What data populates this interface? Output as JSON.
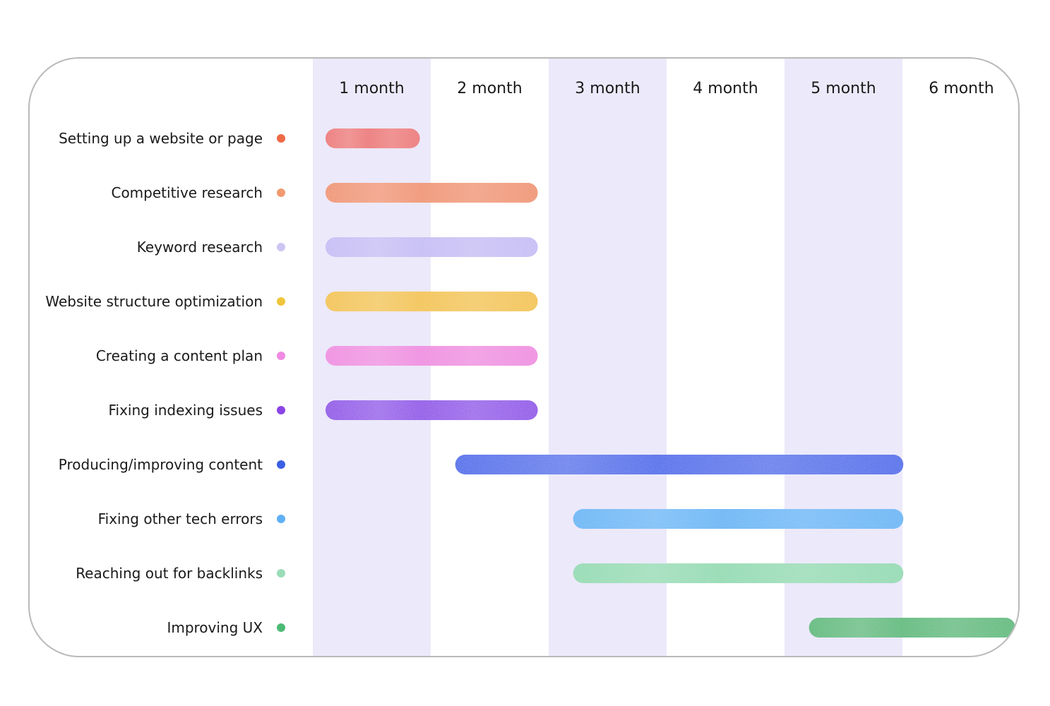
{
  "chart_data": {
    "type": "gantt",
    "title": "",
    "x_unit": "month",
    "columns": [
      "1 month",
      "2 month",
      "3 month",
      "4 month",
      "5 month",
      "6 month"
    ],
    "column_shading": [
      true,
      false,
      true,
      false,
      true,
      false
    ],
    "tasks": [
      {
        "label": "Setting up a website or page",
        "start": 0,
        "end": 0.8,
        "color": "#ec6f6f",
        "dot": "#ee6a45"
      },
      {
        "label": "Competitive research",
        "start": 0,
        "end": 1.8,
        "color": "#f0906a",
        "dot": "#f19a70"
      },
      {
        "label": "Keyword research",
        "start": 0,
        "end": 1.8,
        "color": "#c4bbf4",
        "dot": "#ccc6f3"
      },
      {
        "label": "Website structure optimization",
        "start": 0,
        "end": 1.8,
        "color": "#f3c23e",
        "dot": "#f0c53c"
      },
      {
        "label": "Creating a content plan",
        "start": 0,
        "end": 1.8,
        "color": "#ef88e0",
        "dot": "#f08ae2"
      },
      {
        "label": "Fixing indexing issues",
        "start": 0,
        "end": 1.8,
        "color": "#8c45e8",
        "dot": "#8b44e6"
      },
      {
        "label": "Producing/improving content",
        "start": 1.1,
        "end": 4.9,
        "color": "#3d63ea",
        "dot": "#3a5fe4"
      },
      {
        "label": "Fixing other tech errors",
        "start": 2.1,
        "end": 4.9,
        "color": "#5db4f6",
        "dot": "#5fb0f5"
      },
      {
        "label": "Reaching out for backlinks",
        "start": 2.1,
        "end": 4.9,
        "color": "#8fdab0",
        "dot": "#9adcb8"
      },
      {
        "label": "Improving UX",
        "start": 4.1,
        "end": 5.85,
        "color": "#4fb874",
        "dot": "#4cba74"
      }
    ]
  }
}
